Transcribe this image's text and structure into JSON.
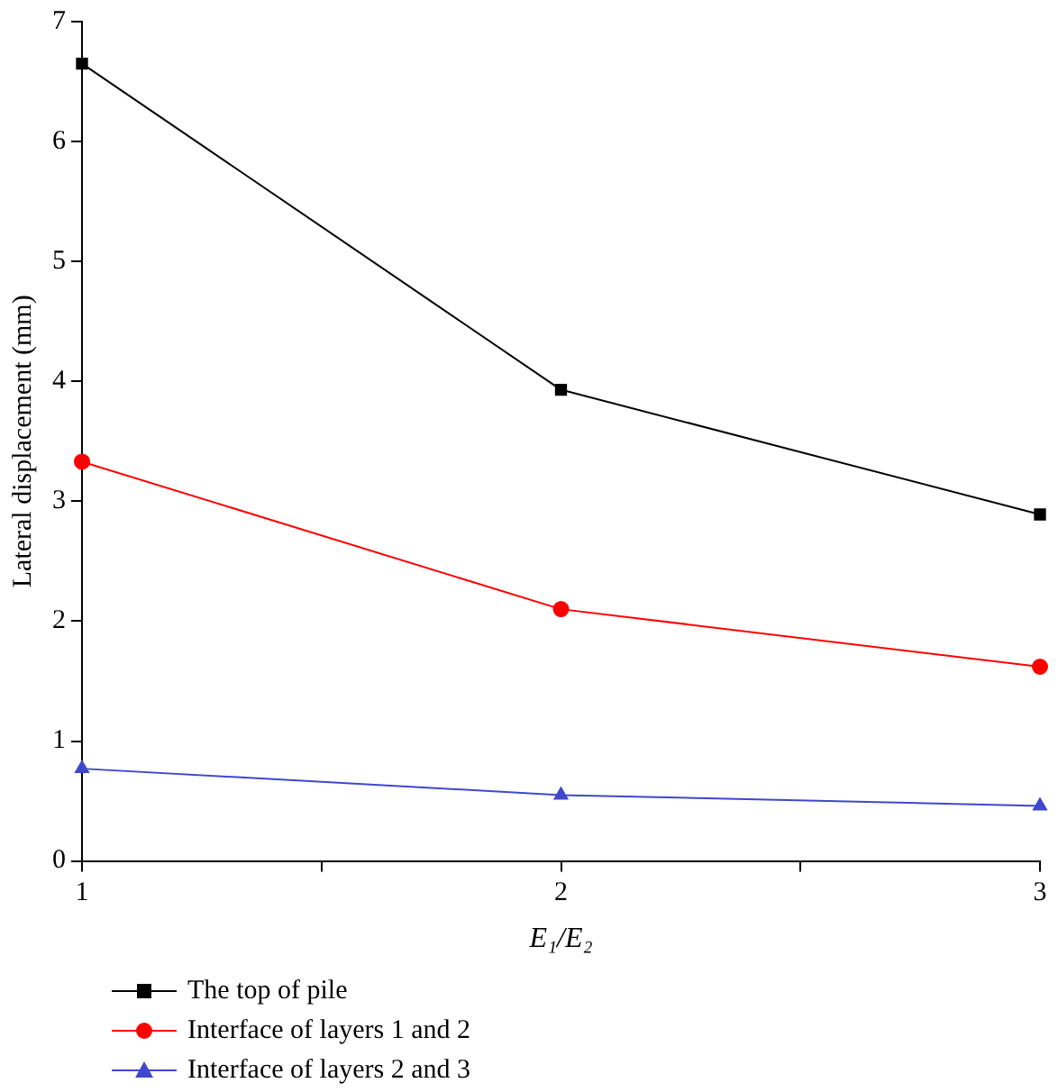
{
  "chart_data": {
    "type": "line",
    "xlabel": "E₁/E₂",
    "ylabel": "Lateral displacement (mm)",
    "x": [
      1,
      2,
      3
    ],
    "series": [
      {
        "name": "The top of pile",
        "color": "#000000",
        "marker": "square",
        "values": [
          6.65,
          3.93,
          2.89
        ]
      },
      {
        "name": "Interface of layers 1 and 2",
        "color": "#ff0000",
        "marker": "circle",
        "values": [
          3.33,
          2.1,
          1.62
        ]
      },
      {
        "name": "Interface of layers 2 and 3",
        "color": "#3f48cc",
        "marker": "triangle",
        "values": [
          0.77,
          0.55,
          0.46
        ]
      }
    ],
    "xlim": [
      1,
      3
    ],
    "xticks": [
      1,
      {
        "value": 1.5,
        "label": null
      },
      2,
      {
        "value": 2.5,
        "label": null
      },
      3
    ],
    "ylim": [
      0,
      7
    ],
    "yticks": [
      0,
      1,
      2,
      3,
      4,
      5,
      6,
      7
    ],
    "legend": "bottom left",
    "line_style": "solid"
  }
}
